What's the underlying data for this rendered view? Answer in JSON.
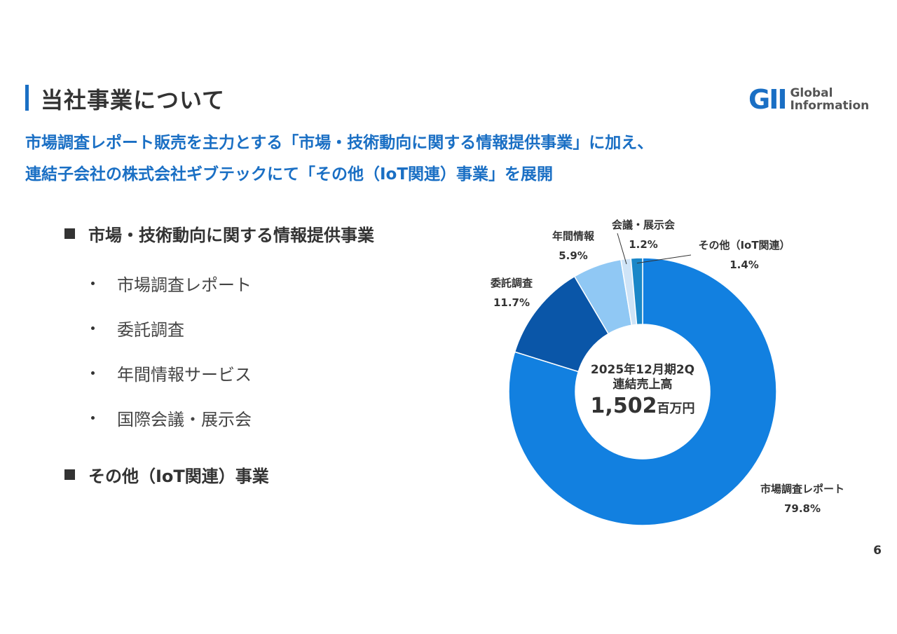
{
  "header": {
    "title": "当社事業について",
    "logo_mark": "GII",
    "logo_line1": "Global",
    "logo_line2": "Information"
  },
  "lead": {
    "line1": "市場調査レポート販売を主力とする「市場・技術動向に関する情報提供事業」に加え、",
    "line2": "連結子会社の株式会社ギブテックにて「その他（IoT関連）事業」を展開"
  },
  "sections": {
    "main_title": "市場・技術動向に関する情報提供事業",
    "items": [
      "市場調査レポート",
      "委託調査",
      "年間情報サービス",
      "国際会議・展示会"
    ],
    "other_title": "その他（IoT関連）事業"
  },
  "chart_data": {
    "type": "pie",
    "donut": true,
    "center": {
      "line1": "2025年12月期2Q",
      "line2": "連結売上高",
      "value": "1,502",
      "unit": "百万円"
    },
    "slices": [
      {
        "label": "市場調査レポート",
        "value": 79.8,
        "value_label": "79.8%",
        "color": "#1280e0"
      },
      {
        "label": "委託調査",
        "value": 11.7,
        "value_label": "11.7%",
        "color": "#0a56a8"
      },
      {
        "label": "年間情報",
        "value": 5.9,
        "value_label": "5.9%",
        "color": "#90c8f4"
      },
      {
        "label": "会議・展示会",
        "value": 1.2,
        "value_label": "1.2%",
        "color": "#cfe4f7"
      },
      {
        "label": "その他（IoT関連）",
        "value": 1.4,
        "value_label": "1.4%",
        "color": "#1a87c8"
      }
    ]
  },
  "footer": {
    "page_number": "6"
  }
}
